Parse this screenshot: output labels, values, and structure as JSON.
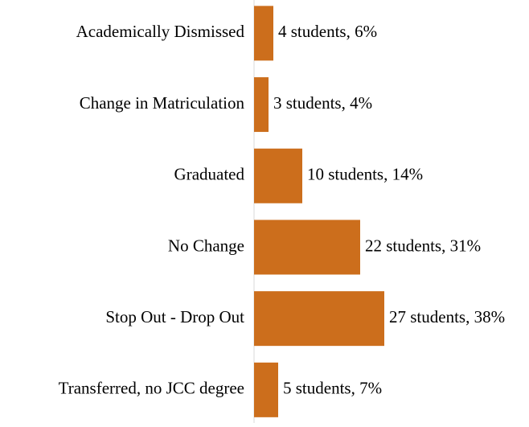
{
  "chart_data": {
    "type": "hbar",
    "categories": [
      "Academically Dismissed",
      "Change in Matriculation",
      "Graduated",
      "No Change",
      "Stop Out - Drop Out",
      "Transferred, no JCC degree"
    ],
    "values": [
      4,
      3,
      10,
      22,
      27,
      5
    ],
    "value_labels": [
      "4 students, 6%",
      "3 students, 4%",
      "10 students, 14%",
      "22 students, 31%",
      "27 students, 38%",
      "5 students, 7%"
    ],
    "color": "#cc6e1c"
  }
}
